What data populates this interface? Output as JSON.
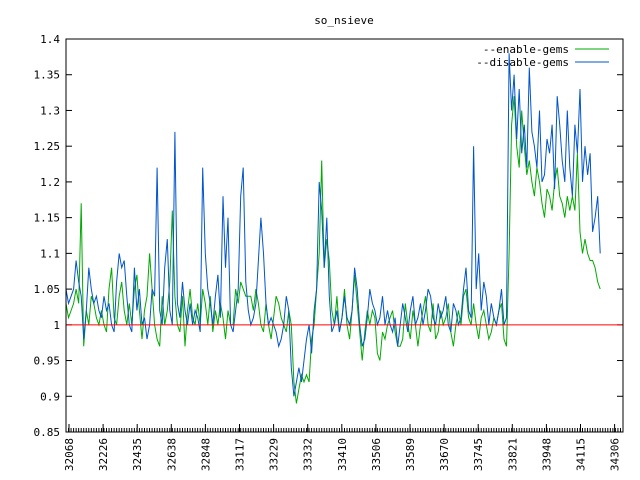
{
  "chart_data": {
    "type": "line",
    "title": "so_nsieve",
    "xlabel": "",
    "ylabel": "",
    "ylim": [
      0.85,
      1.4
    ],
    "yticks": [
      "0.85",
      "0.9",
      "0.95",
      "1",
      "1.05",
      "1.1",
      "1.15",
      "1.2",
      "1.25",
      "1.3",
      "1.35",
      "1.4"
    ],
    "xtick_labels": [
      "32068",
      "32226",
      "32435",
      "32638",
      "32848",
      "33117",
      "33229",
      "33332",
      "33410",
      "33506",
      "33589",
      "33670",
      "33745",
      "33821",
      "33948",
      "34115",
      "34306"
    ],
    "xlim": [
      0,
      220
    ],
    "reference_line": {
      "value": 1,
      "color": "#ff0000"
    },
    "legend": "top-right",
    "grid": false,
    "series": [
      {
        "name": "--enable-gems",
        "color": "#00aa00",
        "values": [
          1.03,
          1.01,
          1.02,
          1.03,
          1.05,
          1.03,
          1.17,
          0.97,
          1.02,
          1.0,
          1.04,
          1.03,
          1.01,
          1.0,
          1.02,
          1.0,
          0.99,
          1.05,
          1.08,
          1.01,
          1.0,
          1.04,
          1.06,
          1.02,
          1.0,
          1.03,
          1.0,
          1.05,
          1.07,
          1.02,
          0.98,
          1.02,
          1.04,
          1.1,
          1.05,
          1.0,
          0.98,
          0.97,
          1.04,
          1.0,
          1.02,
          1.06,
          1.16,
          1.04,
          1.0,
          0.99,
          1.04,
          0.97,
          1.02,
          1.05,
          1.01,
          1.0,
          1.03,
          1.0,
          1.05,
          1.03,
          1.0,
          1.04,
          0.99,
          1.02,
          1.0,
          1.03,
          1.01,
          0.98,
          1.02,
          1.0,
          1.0,
          1.05,
          1.03,
          1.06,
          1.05,
          1.04,
          1.04,
          1.04,
          1.02,
          1.05,
          1.03,
          1.0,
          0.99,
          1.03,
          1.0,
          0.98,
          1.01,
          1.04,
          1.03,
          1.01,
          1.0,
          0.99,
          1.02,
          1.0,
          0.92,
          0.89,
          0.91,
          0.93,
          0.92,
          0.93,
          0.92,
          0.98,
          1.0,
          1.05,
          1.1,
          1.23,
          1.08,
          1.12,
          1.09,
          1.02,
          1.0,
          1.04,
          0.99,
          1.01,
          1.05,
          1.0,
          0.98,
          1.02,
          1.07,
          1.03,
          0.99,
          0.95,
          0.99,
          1.02,
          1.0,
          1.02,
          1.01,
          0.96,
          0.95,
          0.99,
          0.98,
          1.0,
          1.01,
          1.02,
          0.99,
          0.97,
          0.97,
          0.98,
          1.03,
          1.0,
          0.98,
          1.02,
          1.0,
          0.97,
          1.0,
          1.02,
          1.04,
          1.0,
          0.99,
          1.03,
          0.98,
          0.99,
          1.02,
          1.0,
          1.01,
          1.03,
          0.99,
          0.97,
          1.0,
          1.02,
          1.0,
          1.04,
          1.05,
          1.01,
          1.0,
          1.03,
          1.0,
          0.98,
          1.01,
          1.02,
          1.0,
          0.98,
          0.99,
          1.01,
          1.0,
          1.02,
          1.03,
          0.98,
          0.97,
          1.1,
          1.28,
          1.32,
          1.25,
          1.22,
          1.3,
          1.25,
          1.21,
          1.23,
          1.2,
          1.18,
          1.22,
          1.2,
          1.17,
          1.15,
          1.19,
          1.18,
          1.16,
          1.2,
          1.22,
          1.18,
          1.17,
          1.15,
          1.18,
          1.16,
          1.18,
          1.16,
          1.24,
          1.13,
          1.1,
          1.12,
          1.1,
          1.09,
          1.09,
          1.08,
          1.06,
          1.05
        ]
      },
      {
        "name": "--disable-gems",
        "color": "#0055cc",
        "values": [
          1.05,
          1.03,
          1.04,
          1.05,
          1.09,
          1.06,
          1.04,
          0.98,
          1.02,
          1.08,
          1.05,
          1.03,
          1.04,
          1.02,
          1.01,
          1.04,
          1.02,
          1.03,
          1.0,
          0.99,
          1.06,
          1.1,
          1.08,
          1.09,
          1.04,
          1.0,
          0.99,
          1.08,
          1.02,
          1.05,
          1.0,
          1.01,
          0.98,
          1.0,
          1.05,
          1.04,
          1.22,
          1.02,
          1.0,
          1.08,
          1.12,
          1.02,
          1.0,
          1.27,
          1.03,
          1.01,
          1.06,
          1.02,
          1.0,
          1.03,
          1.0,
          1.02,
          1.01,
          0.99,
          1.22,
          1.1,
          1.05,
          1.03,
          1.0,
          1.04,
          1.07,
          1.01,
          1.18,
          1.08,
          1.15,
          1.0,
          0.99,
          1.02,
          1.05,
          1.18,
          1.22,
          1.06,
          1.02,
          1.0,
          1.01,
          1.03,
          1.09,
          1.15,
          1.1,
          1.03,
          1.0,
          1.01,
          1.0,
          0.99,
          0.97,
          0.98,
          1.0,
          1.04,
          1.02,
          0.94,
          0.9,
          0.92,
          0.94,
          0.92,
          0.95,
          0.98,
          1.0,
          0.96,
          1.02,
          1.05,
          1.2,
          1.16,
          1.08,
          1.15,
          1.04,
          0.99,
          1.0,
          1.02,
          0.99,
          1.01,
          1.04,
          1.01,
          1.0,
          1.02,
          1.08,
          1.05,
          1.0,
          0.97,
          0.98,
          1.01,
          1.05,
          1.03,
          1.02,
          1.0,
          1.01,
          1.04,
          1.0,
          1.02,
          1.0,
          0.99,
          1.01,
          0.97,
          1.0,
          1.03,
          1.01,
          0.99,
          1.02,
          1.04,
          1.0,
          1.01,
          1.03,
          1.0,
          1.02,
          1.05,
          1.04,
          1.01,
          1.0,
          1.03,
          1.01,
          1.02,
          1.04,
          1.0,
          0.99,
          1.03,
          1.02,
          1.0,
          1.01,
          1.05,
          1.08,
          1.02,
          1.01,
          1.25,
          1.05,
          1.1,
          1.02,
          1.06,
          1.04,
          1.0,
          1.03,
          1.01,
          1.0,
          1.02,
          1.05,
          1.0,
          1.01,
          1.38,
          1.3,
          1.35,
          1.26,
          1.33,
          1.24,
          1.28,
          1.22,
          1.36,
          1.27,
          1.25,
          1.22,
          1.3,
          1.2,
          1.21,
          1.26,
          1.24,
          1.28,
          1.19,
          1.32,
          1.28,
          1.23,
          1.2,
          1.3,
          1.22,
          1.18,
          1.28,
          1.24,
          1.33,
          1.2,
          1.25,
          1.21,
          1.24,
          1.13,
          1.15,
          1.18,
          1.1
        ]
      }
    ]
  }
}
